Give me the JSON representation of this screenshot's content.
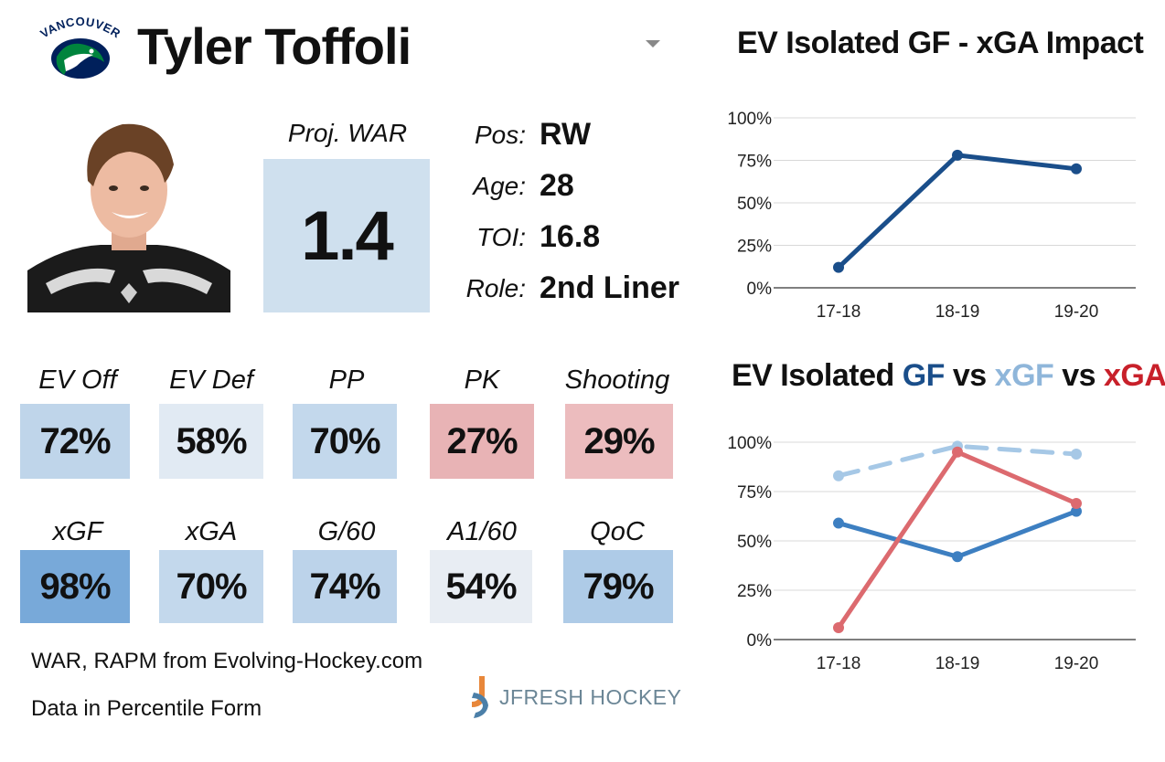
{
  "team": {
    "logo_text": "VANCOUVER"
  },
  "player": {
    "name": "Tyler Toffoli"
  },
  "war": {
    "label": "Proj. WAR",
    "value": "1.4"
  },
  "info": [
    {
      "label": "Pos:",
      "value": "RW"
    },
    {
      "label": "Age:",
      "value": "28"
    },
    {
      "label": "TOI:",
      "value": "16.8"
    },
    {
      "label": "Role:",
      "value": "2nd Liner"
    }
  ],
  "stats_row1": [
    {
      "label": "EV Off",
      "value": "72%",
      "color": "#bfd5ea"
    },
    {
      "label": "EV Def",
      "value": "58%",
      "color": "#e1eaf3"
    },
    {
      "label": "PP",
      "value": "70%",
      "color": "#c3d8ec"
    },
    {
      "label": "PK",
      "value": "27%",
      "color": "#e8b3b5"
    },
    {
      "label": "Shooting",
      "value": "29%",
      "color": "#ecbcbe"
    }
  ],
  "stats_row2": [
    {
      "label": "xGF",
      "value": "98%",
      "color": "#78a9d9"
    },
    {
      "label": "xGA",
      "value": "70%",
      "color": "#c3d8ec"
    },
    {
      "label": "G/60",
      "value": "74%",
      "color": "#bcd3ea"
    },
    {
      "label": "A1/60",
      "value": "54%",
      "color": "#e8edf3"
    },
    {
      "label": "QoC",
      "value": "79%",
      "color": "#aecbe7"
    }
  ],
  "footnotes": {
    "line1": "WAR, RAPM from  Evolving-Hockey.com",
    "line2": "Data in Percentile Form"
  },
  "brand": {
    "text": "JFRESH HOCKEY"
  },
  "chart1": {
    "title": "EV Isolated GF - xGA Impact"
  },
  "chart2": {
    "title_parts": [
      "EV Isolated ",
      "GF",
      " vs ",
      "xGF",
      " vs ",
      "xGA"
    ]
  },
  "chart_data": [
    {
      "type": "line",
      "title": "EV Isolated GF - xGA Impact",
      "categories": [
        "17-18",
        "18-19",
        "19-20"
      ],
      "ylim": [
        0,
        100
      ],
      "yticks": [
        "0%",
        "25%",
        "50%",
        "75%",
        "100%"
      ],
      "grid": true,
      "series": [
        {
          "values": [
            12,
            78,
            70
          ],
          "color": "#1a4e8a",
          "dashed": false
        }
      ]
    },
    {
      "type": "line",
      "title": "EV Isolated GF vs xGF vs xGA",
      "categories": [
        "17-18",
        "18-19",
        "19-20"
      ],
      "ylim": [
        0,
        100
      ],
      "yticks": [
        "0%",
        "25%",
        "50%",
        "75%",
        "100%"
      ],
      "grid": true,
      "series": [
        {
          "name": "GF",
          "values": [
            59,
            42,
            65
          ],
          "color": "#3d7fc1",
          "dashed": false
        },
        {
          "name": "xGF",
          "values": [
            83,
            98,
            94
          ],
          "color": "#a6c8e6",
          "dashed": true
        },
        {
          "name": "xGA",
          "values": [
            6,
            95,
            69
          ],
          "color": "#dc6a6f",
          "dashed": false
        }
      ]
    }
  ]
}
